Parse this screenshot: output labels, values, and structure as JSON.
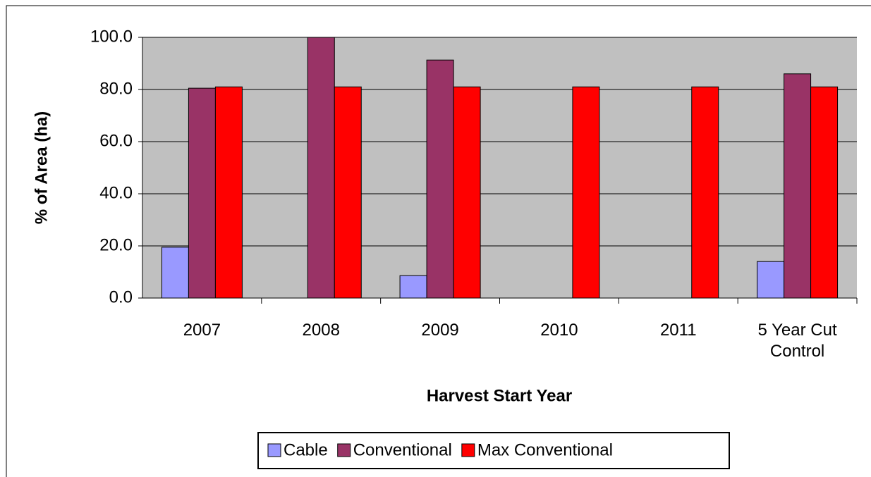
{
  "chart_data": {
    "type": "bar",
    "y_label": "% of Area (ha)",
    "x_label": "Harvest Start Year",
    "categories": [
      "2007",
      "2008",
      "2009",
      "2010",
      "2011",
      "5 Year Cut Control"
    ],
    "series": [
      {
        "name": "Cable",
        "color": "#9999ff",
        "values": [
          19.5,
          0,
          8.6,
          0,
          0,
          14.0
        ]
      },
      {
        "name": "Conventional",
        "color": "#993366",
        "values": [
          80.5,
          100,
          91.3,
          0,
          0,
          86.0
        ]
      },
      {
        "name": "Max Conventional",
        "color": "#ff0000",
        "values": [
          81.0,
          81.0,
          81.0,
          81.0,
          81.0,
          81.0
        ]
      }
    ],
    "ylim": [
      0,
      100
    ],
    "yticks": [
      {
        "value": 0,
        "label": "0.0"
      },
      {
        "value": 20,
        "label": "20.0"
      },
      {
        "value": 40,
        "label": "40.0"
      },
      {
        "value": 60,
        "label": "60.0"
      },
      {
        "value": 80,
        "label": "80.0"
      },
      {
        "value": 100,
        "label": "100.0"
      }
    ],
    "grid": true
  }
}
